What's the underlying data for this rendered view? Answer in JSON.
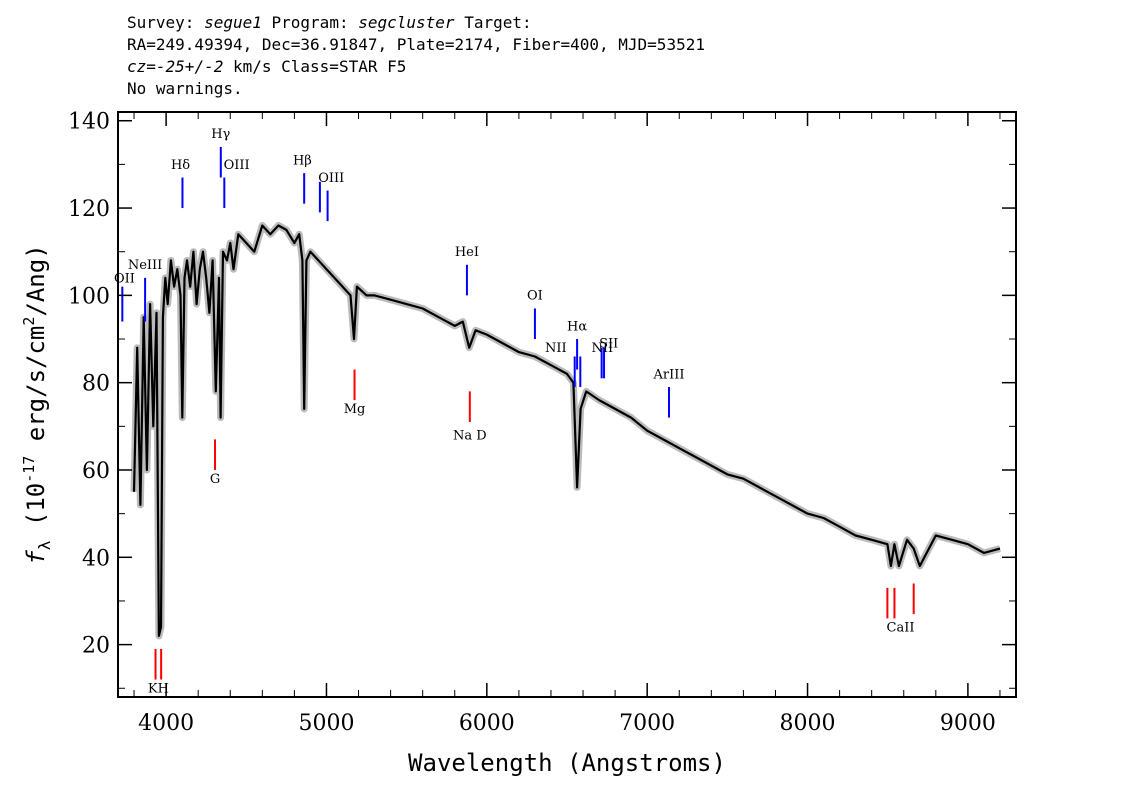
{
  "header": {
    "survey_label": "Survey:",
    "survey": "segue1",
    "program_label": "Program:",
    "program": "segcluster",
    "target_label": "Target:",
    "line2": "RA=249.49394, Dec=36.91847, Plate=2174, Fiber=400, MJD=53521",
    "cz_label": "cz=",
    "cz_value": "-25+/-2",
    "cz_rest": " km/s Class=STAR F5",
    "line4": "No warnings."
  },
  "chart_data": {
    "type": "line",
    "title": "",
    "xlabel": "Wavelength (Angstroms)",
    "ylabel": "fλ (10^-17 erg/s/cm^2/Ang)",
    "xlim": [
      3700,
      9300
    ],
    "ylim": [
      8,
      142
    ],
    "x_ticks": [
      4000,
      5000,
      6000,
      7000,
      8000,
      9000
    ],
    "y_ticks": [
      20,
      40,
      60,
      80,
      100,
      120,
      140
    ],
    "series": [
      {
        "x": [
          3800,
          3820,
          3840,
          3860,
          3880,
          3900,
          3920,
          3940,
          3955,
          3968,
          3980,
          3995,
          4010,
          4030,
          4050,
          4070,
          4090,
          4101,
          4115,
          4130,
          4150,
          4170,
          4190,
          4210,
          4230,
          4250,
          4270,
          4290,
          4310,
          4330,
          4340,
          4355,
          4380,
          4400,
          4420,
          4450,
          4500,
          4550,
          4600,
          4650,
          4700,
          4750,
          4800,
          4830,
          4850,
          4861,
          4875,
          4900,
          4950,
          5000,
          5050,
          5100,
          5150,
          5172,
          5190,
          5250,
          5300,
          5400,
          5500,
          5600,
          5700,
          5800,
          5850,
          5890,
          5930,
          6000,
          6100,
          6200,
          6300,
          6400,
          6500,
          6540,
          6563,
          6585,
          6620,
          6700,
          6800,
          6900,
          7000,
          7100,
          7200,
          7300,
          7400,
          7500,
          7600,
          7700,
          7800,
          7900,
          8000,
          8100,
          8200,
          8300,
          8400,
          8498,
          8520,
          8542,
          8570,
          8620,
          8662,
          8700,
          8800,
          8900,
          9000,
          9100,
          9200
        ],
        "values": [
          55,
          88,
          52,
          95,
          60,
          98,
          70,
          96,
          22,
          24,
          95,
          104,
          98,
          108,
          102,
          106,
          100,
          72,
          104,
          108,
          102,
          110,
          98,
          106,
          110,
          104,
          96,
          108,
          78,
          104,
          72,
          110,
          108,
          112,
          106,
          114,
          112,
          110,
          116,
          114,
          116,
          115,
          112,
          114,
          108,
          74,
          108,
          110,
          108,
          106,
          104,
          102,
          100,
          90,
          102,
          100,
          100,
          99,
          98,
          97,
          95,
          93,
          94,
          88,
          92,
          91,
          89,
          87,
          86,
          84,
          82,
          80,
          56,
          74,
          78,
          76,
          74,
          72,
          69,
          67,
          65,
          63,
          61,
          59,
          58,
          56,
          54,
          52,
          50,
          49,
          47,
          45,
          44,
          43,
          38,
          43,
          38,
          44,
          42,
          38,
          45,
          44,
          43,
          41,
          42
        ]
      }
    ],
    "emission_lines": [
      {
        "label": "OII",
        "x": 3727,
        "y0": 94,
        "y1": 102,
        "color": "#0000ff"
      },
      {
        "label": "NeIII",
        "x": 3869,
        "y0": 94,
        "y1": 104,
        "color": "#0000ff"
      },
      {
        "label": "Hδ",
        "x": 4102,
        "y0": 120,
        "y1": 127,
        "color": "#0000ff"
      },
      {
        "label": "Hγ",
        "x": 4341,
        "y0": 127,
        "y1": 134,
        "color": "#0000ff"
      },
      {
        "label": "OIII",
        "x": 4363,
        "y0": 120,
        "y1": 127,
        "color": "#0000ff"
      },
      {
        "label": "Hβ",
        "x": 4861,
        "y0": 121,
        "y1": 128,
        "color": "#0000ff"
      },
      {
        "label": "OIII",
        "x": 4959,
        "y0": 119,
        "y1": 126,
        "color": "#0000ff"
      },
      {
        "label": "OIII",
        "x": 5007,
        "y0": 117,
        "y1": 124,
        "color": "#0000ff"
      },
      {
        "label": "HeI",
        "x": 5876,
        "y0": 100,
        "y1": 107,
        "color": "#0000ff"
      },
      {
        "label": "OI",
        "x": 6300,
        "y0": 90,
        "y1": 97,
        "color": "#0000ff"
      },
      {
        "label": "NII",
        "x": 6548,
        "y0": 79,
        "y1": 86,
        "color": "#0000ff"
      },
      {
        "label": "Hα",
        "x": 6563,
        "y0": 83,
        "y1": 90,
        "color": "#0000ff"
      },
      {
        "label": "NII",
        "x": 6583,
        "y0": 79,
        "y1": 86,
        "color": "#0000ff"
      },
      {
        "label": "SII",
        "x": 6716,
        "y0": 81,
        "y1": 88,
        "color": "#0000ff"
      },
      {
        "label": "SII",
        "x": 6731,
        "y0": 81,
        "y1": 88,
        "color": "#0000ff"
      },
      {
        "label": "ArIII",
        "x": 7136,
        "y0": 72,
        "y1": 79,
        "color": "#0000ff"
      }
    ],
    "absorption_lines": [
      {
        "label": "K",
        "x": 3934,
        "y0": 12,
        "y1": 19,
        "color": "#ff0000"
      },
      {
        "label": "H",
        "x": 3969,
        "y0": 12,
        "y1": 19,
        "color": "#ff0000"
      },
      {
        "label": "G",
        "x": 4305,
        "y0": 60,
        "y1": 67,
        "color": "#ff0000"
      },
      {
        "label": "Mg",
        "x": 5175,
        "y0": 76,
        "y1": 83,
        "color": "#ff0000"
      },
      {
        "label": "Na D",
        "x": 5894,
        "y0": 71,
        "y1": 78,
        "color": "#ff0000"
      },
      {
        "label": "CaII",
        "x": 8498,
        "y0": 26,
        "y1": 33,
        "color": "#ff0000"
      },
      {
        "label": "CaII",
        "x": 8542,
        "y0": 26,
        "y1": 33,
        "color": "#ff0000"
      },
      {
        "label": "CaII",
        "x": 8662,
        "y0": 27,
        "y1": 34,
        "color": "#ff0000"
      }
    ],
    "line_text_labels": [
      {
        "text": "OII",
        "x": 3740,
        "y": 103
      },
      {
        "text": "NeIII",
        "x": 3869,
        "y": 106
      },
      {
        "text": "Hδ",
        "x": 4090,
        "y": 129
      },
      {
        "text": "Hγ",
        "x": 4341,
        "y": 136
      },
      {
        "text": "OIII",
        "x": 4440,
        "y": 129
      },
      {
        "text": "Hβ",
        "x": 4850,
        "y": 130
      },
      {
        "text": "OIII",
        "x": 5030,
        "y": 126
      },
      {
        "text": "HeI",
        "x": 5876,
        "y": 109
      },
      {
        "text": "OI",
        "x": 6300,
        "y": 99
      },
      {
        "text": "NII",
        "x": 6430,
        "y": 87
      },
      {
        "text": "Hα",
        "x": 6563,
        "y": 92
      },
      {
        "text": "NII",
        "x": 6720,
        "y": 87
      },
      {
        "text": "SII",
        "x": 6760,
        "y": 88
      },
      {
        "text": "ArIII",
        "x": 7136,
        "y": 81
      },
      {
        "text": "G",
        "x": 4305,
        "y": 57
      },
      {
        "text": "Mg",
        "x": 5175,
        "y": 73
      },
      {
        "text": "Na D",
        "x": 5894,
        "y": 67
      },
      {
        "text": "CaII",
        "x": 8580,
        "y": 23
      },
      {
        "text": "KH",
        "x": 3952,
        "y": 9
      }
    ],
    "colors": {
      "spectrum": "#000000",
      "error_band": "#bbbbbb",
      "emission": "#0000ff",
      "absorption": "#ff0000"
    }
  }
}
